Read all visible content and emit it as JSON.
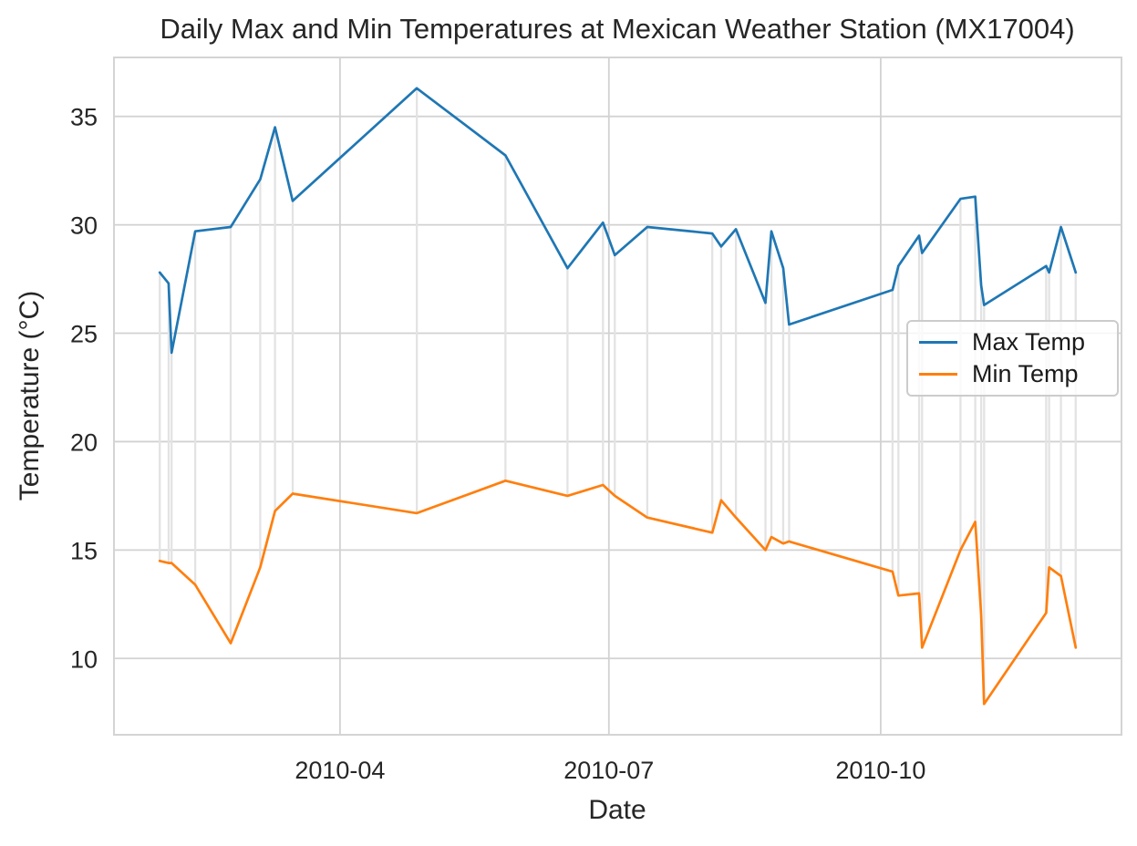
{
  "chart_data": {
    "type": "line",
    "title": "Daily Max and Min Temperatures at Mexican Weather Station (MX17004)",
    "xlabel": "Date",
    "ylabel": "Temperature (°C)",
    "x_dates": [
      "2010-01-30",
      "2010-02-02",
      "2010-02-03",
      "2010-02-11",
      "2010-02-23",
      "2010-03-05",
      "2010-03-10",
      "2010-03-16",
      "2010-04-27",
      "2010-05-27",
      "2010-06-17",
      "2010-06-29",
      "2010-07-03",
      "2010-07-14",
      "2010-08-05",
      "2010-08-08",
      "2010-08-13",
      "2010-08-23",
      "2010-08-25",
      "2010-08-29",
      "2010-08-31",
      "2010-10-05",
      "2010-10-07",
      "2010-10-14",
      "2010-10-15",
      "2010-10-28",
      "2010-11-02",
      "2010-11-04",
      "2010-11-05",
      "2010-11-26",
      "2010-11-27",
      "2010-12-01",
      "2010-12-06"
    ],
    "series": [
      {
        "name": "Max Temp",
        "color": "#1f77b4",
        "values": [
          27.8,
          27.3,
          24.1,
          29.7,
          29.9,
          32.1,
          34.5,
          31.1,
          36.3,
          33.2,
          28.0,
          30.1,
          28.6,
          29.9,
          29.6,
          29.0,
          29.8,
          26.4,
          29.7,
          28.0,
          25.4,
          27.0,
          28.1,
          29.5,
          28.7,
          31.2,
          31.3,
          27.2,
          26.3,
          28.1,
          27.8,
          29.9,
          27.8
        ]
      },
      {
        "name": "Min Temp",
        "color": "#ff7f0e",
        "values": [
          14.5,
          14.4,
          14.4,
          13.4,
          10.7,
          14.2,
          16.8,
          17.6,
          16.7,
          18.2,
          17.5,
          18.0,
          17.5,
          16.5,
          15.8,
          17.3,
          16.5,
          15.0,
          15.6,
          15.3,
          15.4,
          14.0,
          12.9,
          13.0,
          10.5,
          15.0,
          16.3,
          12.0,
          7.9,
          12.1,
          14.2,
          13.8,
          10.5
        ]
      }
    ],
    "x_ticks": [
      {
        "label": "2010-04",
        "date": "2010-04-01"
      },
      {
        "label": "2010-07",
        "date": "2010-07-01"
      },
      {
        "label": "2010-10",
        "date": "2010-10-01"
      }
    ],
    "y_ticks": [
      10,
      15,
      20,
      25,
      30,
      35
    ],
    "xlim_days": [
      14.5,
      355.5
    ],
    "ylim": [
      6.48,
      37.72
    ],
    "grid": {
      "horizontal_at_yticks": true,
      "vertical_at_xticks": true,
      "daily_range_connectors": true
    },
    "legend": {
      "position": "center right",
      "entries": [
        "Max Temp",
        "Min Temp"
      ]
    },
    "colors": {
      "gridline": "#d2d2d2",
      "range_connector": "#e3e3e3",
      "spine": "#d4d4d4",
      "text": "#262626",
      "background": "#ffffff"
    }
  }
}
